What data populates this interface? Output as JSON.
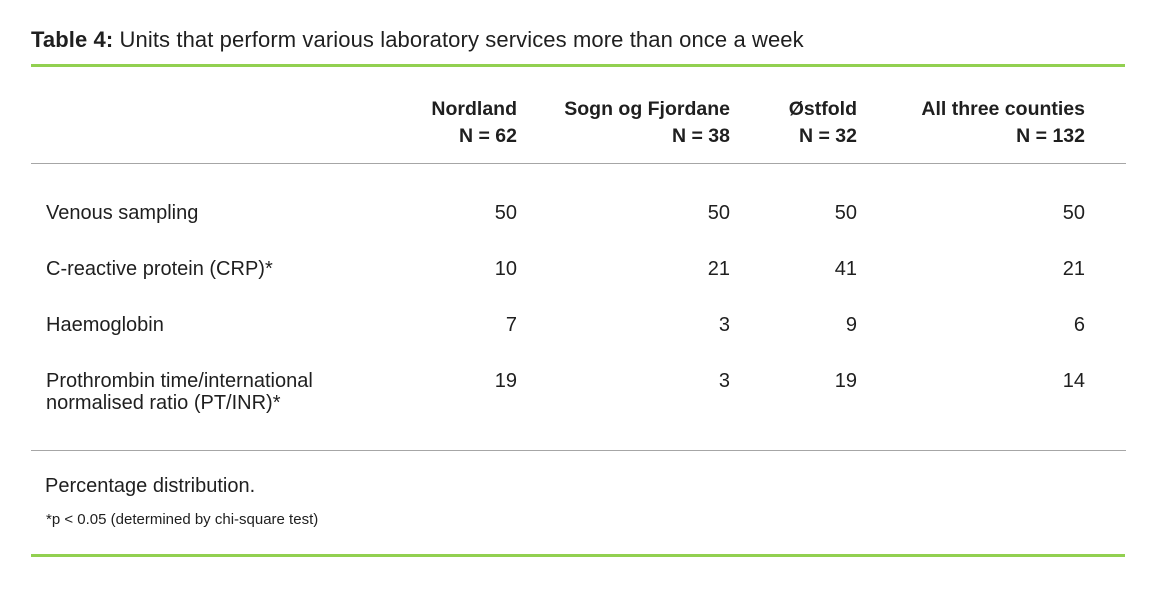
{
  "caption": {
    "label": "Table 4:",
    "text": "Units that perform various laboratory services more than once a week"
  },
  "table": {
    "columns": [
      {
        "name": "Nordland",
        "n": "N = 62"
      },
      {
        "name": "Sogn og Fjordane",
        "n": "N = 38"
      },
      {
        "name": "Østfold",
        "n": "N = 32"
      },
      {
        "name": "All three counties",
        "n": "N = 132"
      }
    ],
    "rows": [
      {
        "label": "Venous sampling",
        "values": [
          50,
          50,
          50,
          50
        ]
      },
      {
        "label": "C-reactive protein (CRP)*",
        "values": [
          10,
          21,
          41,
          21
        ]
      },
      {
        "label": "Haemoglobin",
        "values": [
          7,
          3,
          9,
          6
        ]
      },
      {
        "label": "Prothrombin time/international normalised ratio (PT/INR)*",
        "values": [
          19,
          3,
          19,
          14
        ]
      }
    ]
  },
  "footer": {
    "note": "Percentage distribution.",
    "footnote": "*p < 0.05 (determined by chi-square test)"
  },
  "colors": {
    "accent_green": "#92d050",
    "divider_gray": "#a6a6a6",
    "text": "#1f1f1f",
    "background": "#ffffff"
  }
}
